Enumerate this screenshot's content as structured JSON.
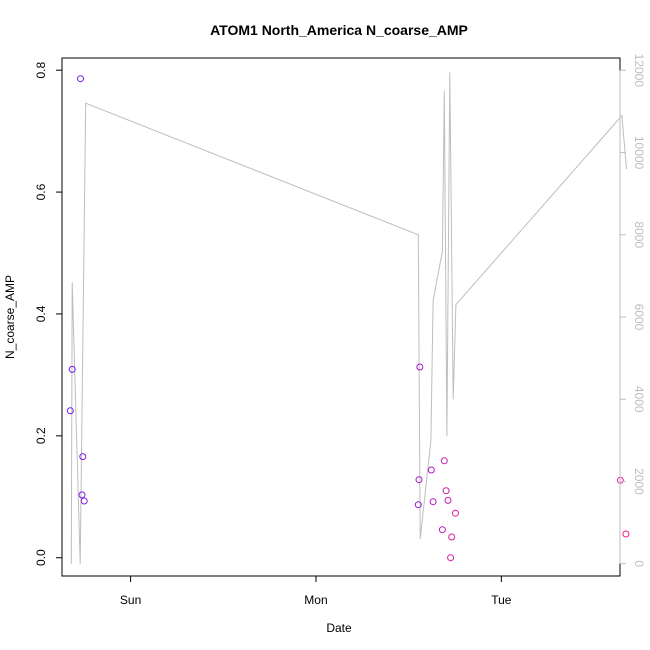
{
  "chart_data": {
    "type": "scatter",
    "title": "ATOM1 North_America N_coarse_AMP",
    "xlabel": "Date",
    "ylabel": "N_coarse_AMP",
    "xlim": [
      -0.37,
      2.64
    ],
    "x_ticks": [
      {
        "value": 0,
        "label": "Sun"
      },
      {
        "value": 1,
        "label": "Mon"
      },
      {
        "value": 2,
        "label": "Tue"
      }
    ],
    "ylim": [
      -0.03,
      0.82
    ],
    "y_ticks": [
      "0.0",
      "0.2",
      "0.4",
      "0.6",
      "0.8"
    ],
    "y2lim": [
      -300,
      12300
    ],
    "y2_ticks": [
      "0",
      "2000",
      "4000",
      "6000",
      "8000",
      "10000",
      "12000"
    ],
    "grid": false,
    "legend": "none",
    "colors": {
      "line": "#bebebe",
      "points_start": "#6a1cf2",
      "points_end": "#ef1c8f"
    },
    "series": [
      {
        "type": "points",
        "axis": "left",
        "points": [
          {
            "x": -0.325,
            "y": 0.241
          },
          {
            "x": -0.315,
            "y": 0.309
          },
          {
            "x": -0.27,
            "y": 0.786
          },
          {
            "x": -0.262,
            "y": 0.103
          },
          {
            "x": -0.258,
            "y": 0.166
          },
          {
            "x": -0.25,
            "y": 0.093
          },
          {
            "x": 1.552,
            "y": 0.087
          },
          {
            "x": 1.556,
            "y": 0.128
          },
          {
            "x": 1.56,
            "y": 0.313
          },
          {
            "x": 1.622,
            "y": 0.144
          },
          {
            "x": 1.632,
            "y": 0.092
          },
          {
            "x": 1.682,
            "y": 0.046
          },
          {
            "x": 1.692,
            "y": 0.159
          },
          {
            "x": 1.702,
            "y": 0.11
          },
          {
            "x": 1.712,
            "y": 0.094
          },
          {
            "x": 1.726,
            "y": 0.0
          },
          {
            "x": 1.732,
            "y": 0.034
          },
          {
            "x": 1.752,
            "y": 0.073
          },
          {
            "x": 2.642,
            "y": 0.127
          },
          {
            "x": 2.672,
            "y": 0.039
          }
        ]
      },
      {
        "type": "line",
        "axis": "right",
        "points": [
          {
            "x": -0.32,
            "y": 0
          },
          {
            "x": -0.315,
            "y": 6850
          },
          {
            "x": -0.272,
            "y": 0
          },
          {
            "x": -0.242,
            "y": 11200
          },
          {
            "x": 1.552,
            "y": 8000
          },
          {
            "x": 1.562,
            "y": 600
          },
          {
            "x": 1.62,
            "y": 3000
          },
          {
            "x": 1.632,
            "y": 6400
          },
          {
            "x": 1.682,
            "y": 7600
          },
          {
            "x": 1.692,
            "y": 11500
          },
          {
            "x": 1.706,
            "y": 3100
          },
          {
            "x": 1.722,
            "y": 11950
          },
          {
            "x": 1.74,
            "y": 4000
          },
          {
            "x": 1.755,
            "y": 6300
          },
          {
            "x": 2.65,
            "y": 10900
          },
          {
            "x": 2.675,
            "y": 9600
          }
        ]
      }
    ]
  }
}
